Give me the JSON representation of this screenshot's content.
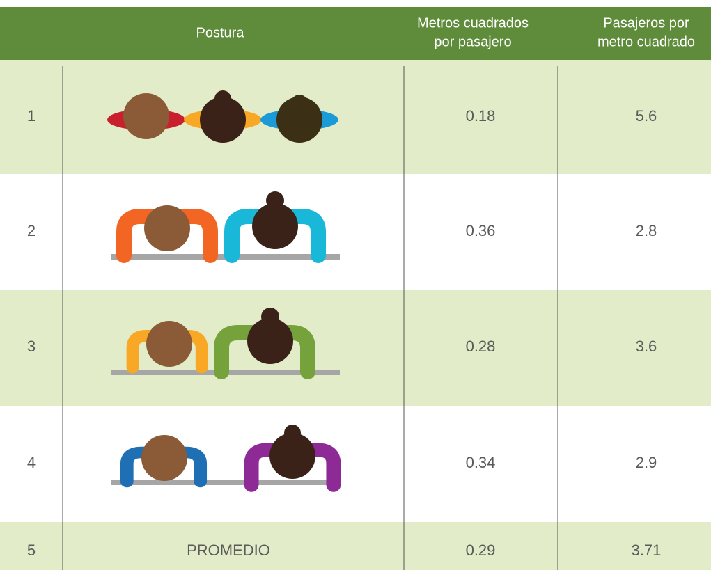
{
  "header": {
    "postura": "Postura",
    "metros": [
      "Metros cuadrados",
      "por pasajero"
    ],
    "pasajeros": [
      "Pasajeros por",
      "metro cuadrado"
    ]
  },
  "rows": [
    {
      "n": 1,
      "m": 0.18,
      "p": 5.6
    },
    {
      "n": 2,
      "m": 0.36,
      "p": 2.8
    },
    {
      "n": 3,
      "m": 0.28,
      "p": 3.6
    },
    {
      "n": 4,
      "m": 0.34,
      "p": 2.9
    },
    {
      "n": 5,
      "postura": "PROMEDIO",
      "m": 0.29,
      "p": 3.71
    }
  ]
}
